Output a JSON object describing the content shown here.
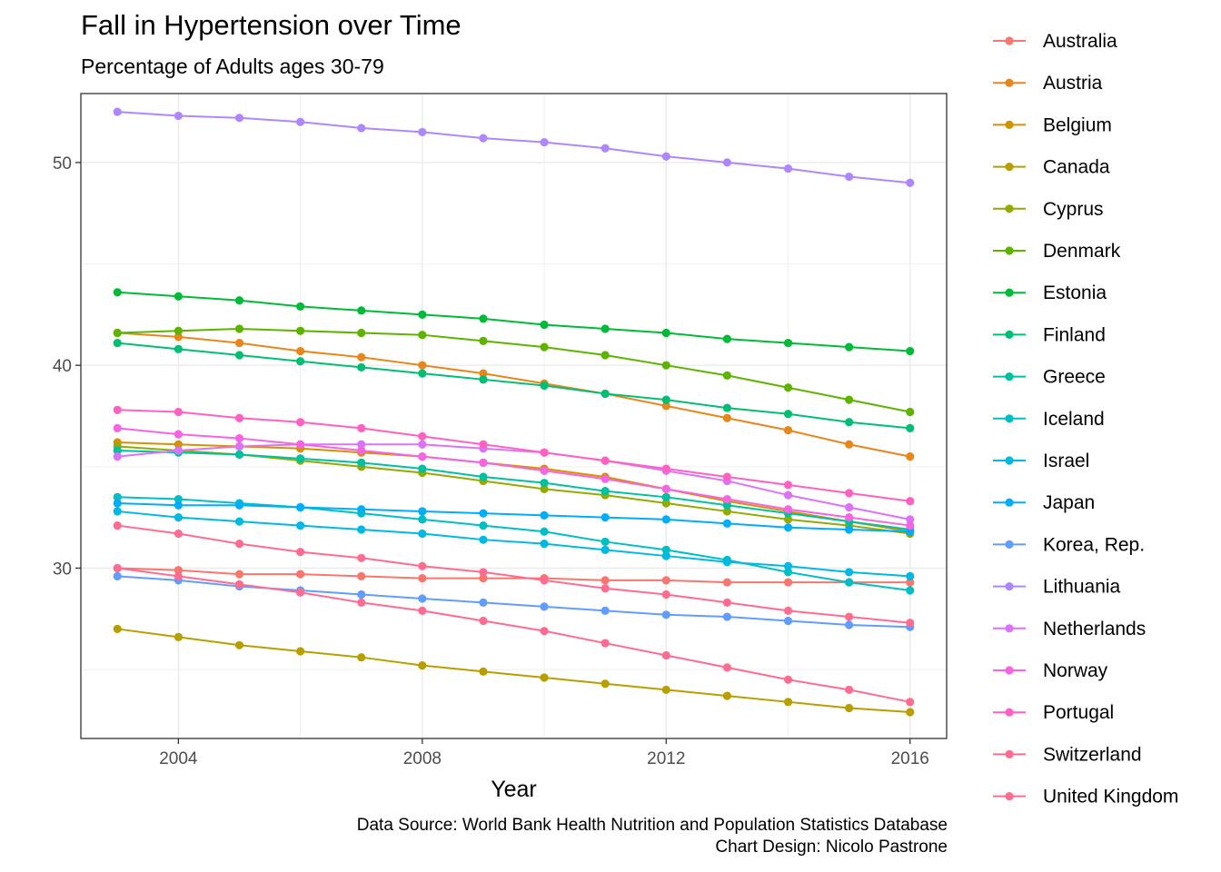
{
  "chart_data": {
    "type": "line",
    "title": "Fall in Hypertension over Time",
    "subtitle": "Percentage of Adults ages 30-79",
    "xlabel": "Year",
    "ylabel": "",
    "caption": [
      "Data Source: World Bank Health Nutrition and Population Statistics Database",
      "Chart Design: Nicolo Pastrone"
    ],
    "x": [
      2003,
      2004,
      2005,
      2006,
      2007,
      2008,
      2009,
      2010,
      2011,
      2012,
      2013,
      2014,
      2015,
      2016
    ],
    "xlim": [
      2002.4,
      2016.6
    ],
    "ylim": [
      21.6,
      53.4
    ],
    "x_ticks": [
      2004,
      2008,
      2012,
      2016
    ],
    "y_ticks": [
      30,
      40,
      50
    ],
    "grid": true,
    "legend_position": "right",
    "series": [
      {
        "name": "Australia",
        "color": "#F8766D",
        "values": [
          30.0,
          29.9,
          29.7,
          29.7,
          29.6,
          29.5,
          29.5,
          29.5,
          29.4,
          29.4,
          29.3,
          29.3,
          29.3,
          29.3
        ]
      },
      {
        "name": "Austria",
        "color": "#E7861B",
        "values": [
          41.6,
          41.4,
          41.1,
          40.7,
          40.4,
          40.0,
          39.6,
          39.1,
          38.6,
          38.0,
          37.4,
          36.8,
          36.1,
          35.5
        ]
      },
      {
        "name": "Belgium",
        "color": "#D39200",
        "values": [
          36.2,
          36.1,
          36.0,
          35.9,
          35.7,
          35.5,
          35.2,
          34.9,
          34.5,
          33.9,
          33.3,
          32.8,
          32.3,
          31.8
        ]
      },
      {
        "name": "Canada",
        "color": "#B79F00",
        "values": [
          27.0,
          26.6,
          26.2,
          25.9,
          25.6,
          25.2,
          24.9,
          24.6,
          24.3,
          24.0,
          23.7,
          23.4,
          23.1,
          22.9
        ]
      },
      {
        "name": "Cyprus",
        "color": "#93AA00",
        "values": [
          36.0,
          35.8,
          35.6,
          35.3,
          35.0,
          34.7,
          34.3,
          33.9,
          33.6,
          33.2,
          32.8,
          32.4,
          32.1,
          31.7
        ]
      },
      {
        "name": "Denmark",
        "color": "#5EB300",
        "values": [
          41.6,
          41.7,
          41.8,
          41.7,
          41.6,
          41.5,
          41.2,
          40.9,
          40.5,
          40.0,
          39.5,
          38.9,
          38.3,
          37.7
        ]
      },
      {
        "name": "Estonia",
        "color": "#00BA38",
        "values": [
          43.6,
          43.4,
          43.2,
          42.9,
          42.7,
          42.5,
          42.3,
          42.0,
          41.8,
          41.6,
          41.3,
          41.1,
          40.9,
          40.7
        ]
      },
      {
        "name": "Finland",
        "color": "#00BF74",
        "values": [
          41.1,
          40.8,
          40.5,
          40.2,
          39.9,
          39.6,
          39.3,
          39.0,
          38.6,
          38.3,
          37.9,
          37.6,
          37.2,
          36.9
        ]
      },
      {
        "name": "Greece",
        "color": "#00C19F",
        "values": [
          35.8,
          35.7,
          35.6,
          35.4,
          35.2,
          34.9,
          34.5,
          34.2,
          33.8,
          33.5,
          33.1,
          32.7,
          32.3,
          31.9
        ]
      },
      {
        "name": "Iceland",
        "color": "#00BFC4",
        "values": [
          33.5,
          33.4,
          33.2,
          33.0,
          32.7,
          32.4,
          32.1,
          31.8,
          31.3,
          30.9,
          30.4,
          29.8,
          29.3,
          28.9
        ]
      },
      {
        "name": "Israel",
        "color": "#00B9E3",
        "values": [
          32.8,
          32.5,
          32.3,
          32.1,
          31.9,
          31.7,
          31.4,
          31.2,
          30.9,
          30.6,
          30.3,
          30.1,
          29.8,
          29.6
        ]
      },
      {
        "name": "Japan",
        "color": "#00ADFA",
        "values": [
          33.2,
          33.1,
          33.1,
          33.0,
          32.9,
          32.8,
          32.7,
          32.6,
          32.5,
          32.4,
          32.2,
          32.0,
          31.9,
          31.8
        ]
      },
      {
        "name": "Korea, Rep.",
        "color": "#619CFF",
        "values": [
          29.6,
          29.4,
          29.1,
          28.9,
          28.7,
          28.5,
          28.3,
          28.1,
          27.9,
          27.7,
          27.6,
          27.4,
          27.2,
          27.1
        ]
      },
      {
        "name": "Lithuania",
        "color": "#AE87FF",
        "values": [
          52.5,
          52.3,
          52.2,
          52.0,
          51.7,
          51.5,
          51.2,
          51.0,
          50.7,
          50.3,
          50.0,
          49.7,
          49.3,
          49.0
        ]
      },
      {
        "name": "Netherlands",
        "color": "#DB72FB",
        "values": [
          35.5,
          35.8,
          36.0,
          36.1,
          36.1,
          36.1,
          35.9,
          35.7,
          35.3,
          34.8,
          34.3,
          33.6,
          33.0,
          32.4
        ]
      },
      {
        "name": "Norway",
        "color": "#F564E3",
        "values": [
          36.9,
          36.6,
          36.4,
          36.1,
          35.8,
          35.5,
          35.2,
          34.8,
          34.4,
          33.9,
          33.4,
          32.9,
          32.5,
          32.1
        ]
      },
      {
        "name": "Portugal",
        "color": "#FF61C3",
        "values": [
          37.8,
          37.7,
          37.4,
          37.2,
          36.9,
          36.5,
          36.1,
          35.7,
          35.3,
          34.9,
          34.5,
          34.1,
          33.7,
          33.3
        ]
      },
      {
        "name": "Switzerland",
        "color": "#FF6C91",
        "values": [
          30.0,
          29.6,
          29.2,
          28.8,
          28.3,
          27.9,
          27.4,
          26.9,
          26.3,
          25.7,
          25.1,
          24.5,
          24.0,
          23.4
        ]
      },
      {
        "name": "United Kingdom",
        "color": "#FF6C91",
        "values": [
          32.1,
          31.7,
          31.2,
          30.8,
          30.5,
          30.1,
          29.8,
          29.4,
          29.0,
          28.7,
          28.3,
          27.9,
          27.6,
          27.3
        ]
      }
    ]
  }
}
